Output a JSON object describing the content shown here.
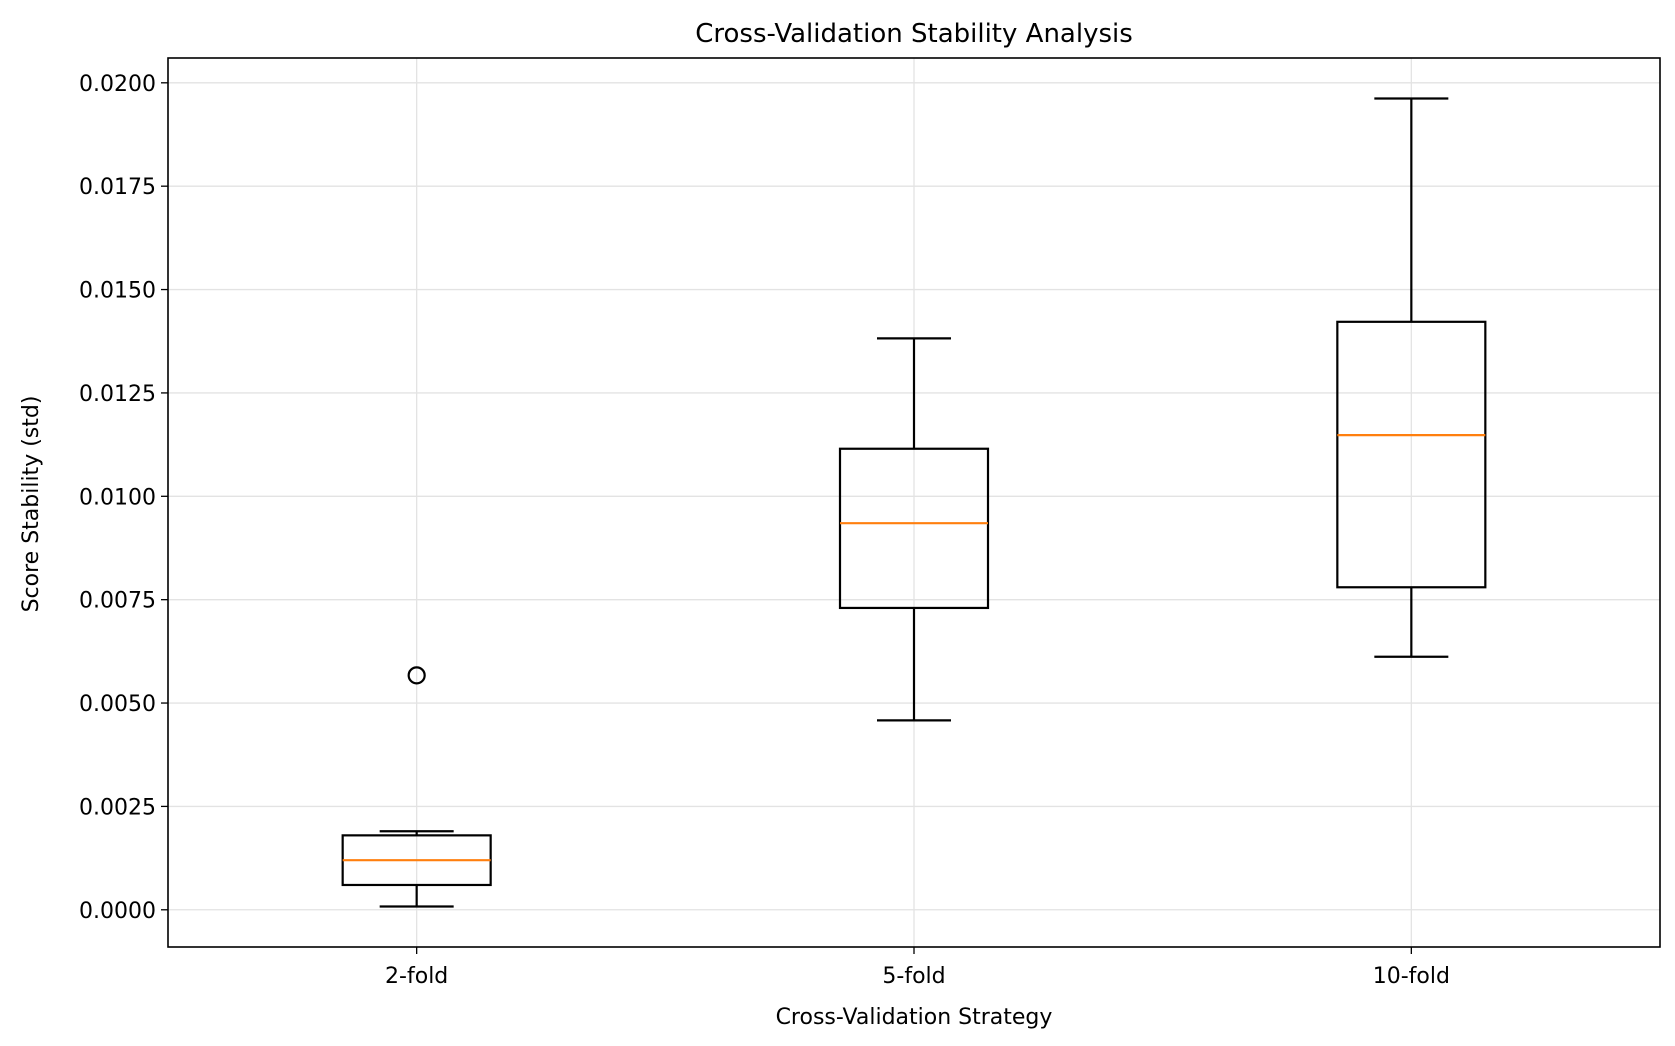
{
  "chart_data": {
    "type": "box",
    "title": "Cross-Validation Stability Analysis",
    "xlabel": "Cross-Validation Strategy",
    "ylabel": "Score Stability (std)",
    "categories": [
      "2-fold",
      "5-fold",
      "10-fold"
    ],
    "ylim": [
      -0.0009,
      0.0206
    ],
    "yticks": [
      0.0,
      0.0025,
      0.005,
      0.0075,
      0.01,
      0.0125,
      0.015,
      0.0175,
      0.02
    ],
    "ytick_labels": [
      "0.0000",
      "0.0025",
      "0.0050",
      "0.0075",
      "0.0100",
      "0.0125",
      "0.0150",
      "0.0175",
      "0.0200"
    ],
    "grid": true,
    "boxes": [
      {
        "category": "2-fold",
        "whisker_low": 8e-05,
        "q1": 0.0006,
        "median": 0.0012,
        "q3": 0.0018,
        "whisker_high": 0.0019,
        "outliers": [
          0.00567
        ]
      },
      {
        "category": "5-fold",
        "whisker_low": 0.00458,
        "q1": 0.0073,
        "median": 0.00935,
        "q3": 0.01115,
        "whisker_high": 0.01382,
        "outliers": []
      },
      {
        "category": "10-fold",
        "whisker_low": 0.00612,
        "q1": 0.0078,
        "median": 0.01148,
        "q3": 0.01422,
        "whisker_high": 0.01962,
        "outliers": []
      }
    ],
    "colors": {
      "box": "#000000",
      "median": "#ff7f0e",
      "grid": "#e3e3e3",
      "outlier": "#000000"
    }
  }
}
